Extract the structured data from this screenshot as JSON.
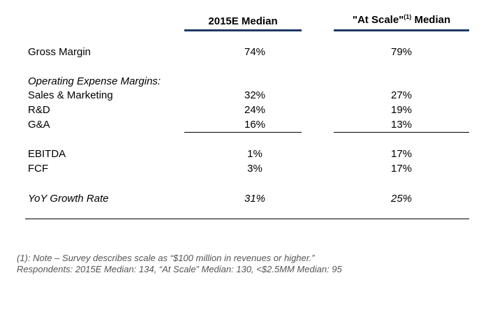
{
  "header": {
    "col1": "2015E Median",
    "col2_pre": "\"At Scale\"",
    "col2_sup": "(1)",
    "col2_post": " Median"
  },
  "rows": {
    "gross_margin": {
      "label": "Gross Margin",
      "v1": "74%",
      "v2": "79%"
    },
    "opex_heading": "Operating Expense Margins:",
    "sales_marketing": {
      "label": "Sales & Marketing",
      "v1": "32%",
      "v2": "27%"
    },
    "rnd": {
      "label": "R&D",
      "v1": "24%",
      "v2": "19%"
    },
    "gna": {
      "label": "G&A",
      "v1": "16%",
      "v2": "13%"
    },
    "ebitda": {
      "label": "EBITDA",
      "v1": "1%",
      "v2": "17%"
    },
    "fcf": {
      "label": "FCF",
      "v1": "3%",
      "v2": "17%"
    },
    "yoy": {
      "label": "YoY Growth Rate",
      "v1": "31%",
      "v2": "25%"
    }
  },
  "footnotes": {
    "note1": "(1): Note – Survey describes scale as “$100 million in revenues or higher.”",
    "note2": "Respondents: 2015E Median: 134, “At Scale” Median: 130, <$2.5MM Median: 95"
  },
  "colors": {
    "header_rule": "#1f3864",
    "footnote_text": "#555555"
  }
}
